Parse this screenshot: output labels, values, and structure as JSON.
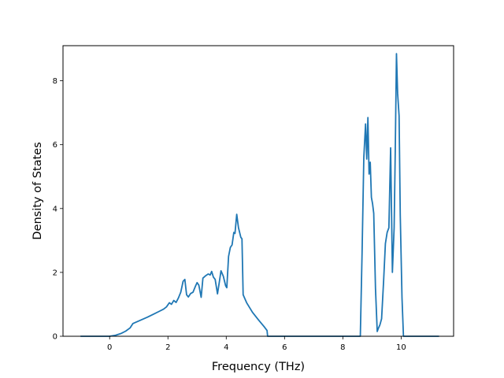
{
  "chart_data": {
    "type": "line",
    "title": "",
    "xlabel": "Frequency (THz)",
    "ylabel": "Density of States",
    "xlim": [
      -1.6,
      11.8
    ],
    "ylim": [
      0,
      9.1
    ],
    "xticks": [
      0,
      2,
      4,
      6,
      8,
      10
    ],
    "yticks": [
      0,
      2,
      4,
      6,
      8
    ],
    "xtick_labels": [
      "0",
      "2",
      "4",
      "6",
      "8",
      "10"
    ],
    "ytick_labels": [
      "0",
      "2",
      "4",
      "6",
      "8"
    ],
    "grid": false,
    "legend": "none",
    "color": "#1f77b4",
    "series": [
      {
        "x": [
          -1.0,
          -0.5,
          0.0,
          0.2,
          0.4,
          0.55,
          0.7,
          0.8,
          0.9,
          1.1,
          1.3,
          1.5,
          1.7,
          1.85,
          1.95,
          2.05,
          2.12,
          2.2,
          2.28,
          2.36,
          2.44,
          2.52,
          2.58,
          2.64,
          2.7,
          2.78,
          2.86,
          2.94,
          3.0,
          3.06,
          3.14,
          3.2,
          3.3,
          3.38,
          3.45,
          3.5,
          3.56,
          3.62,
          3.7,
          3.76,
          3.82,
          3.9,
          3.98,
          4.02,
          4.08,
          4.14,
          4.2,
          4.26,
          4.3,
          4.36,
          4.42,
          4.5,
          4.54,
          4.58,
          4.7,
          4.9,
          5.1,
          5.3,
          5.4,
          5.42,
          6.0,
          7.0,
          8.0,
          8.6,
          8.66,
          8.72,
          8.78,
          8.82,
          8.86,
          8.9,
          8.94,
          8.98,
          9.02,
          9.06,
          9.12,
          9.18,
          9.22,
          9.27,
          9.33,
          9.4,
          9.46,
          9.52,
          9.58,
          9.64,
          9.7,
          9.76,
          9.8,
          9.84,
          9.88,
          9.93,
          9.97,
          10.03,
          10.08,
          10.14,
          10.2,
          10.25,
          10.5,
          11.0,
          11.3
        ],
        "y": [
          0.0,
          0.0,
          0.0,
          0.03,
          0.09,
          0.16,
          0.26,
          0.4,
          0.44,
          0.52,
          0.6,
          0.69,
          0.78,
          0.85,
          0.92,
          1.05,
          1.0,
          1.12,
          1.06,
          1.2,
          1.38,
          1.72,
          1.78,
          1.3,
          1.23,
          1.34,
          1.38,
          1.56,
          1.68,
          1.6,
          1.22,
          1.82,
          1.9,
          1.95,
          1.92,
          2.03,
          1.85,
          1.78,
          1.33,
          1.68,
          2.05,
          1.88,
          1.58,
          1.52,
          2.5,
          2.78,
          2.86,
          3.25,
          3.22,
          3.82,
          3.4,
          3.1,
          3.05,
          1.3,
          1.05,
          0.75,
          0.52,
          0.3,
          0.18,
          0.0,
          0.0,
          0.0,
          0.0,
          0.0,
          2.6,
          5.6,
          6.65,
          5.55,
          6.85,
          5.08,
          5.45,
          4.35,
          4.15,
          3.85,
          1.5,
          0.15,
          0.25,
          0.35,
          0.55,
          1.75,
          2.9,
          3.25,
          3.4,
          5.9,
          2.0,
          3.4,
          5.9,
          8.85,
          7.6,
          6.9,
          3.8,
          1.2,
          0.0,
          0.0,
          0.0,
          0.0,
          0.0,
          0.0,
          0.0
        ]
      }
    ]
  }
}
